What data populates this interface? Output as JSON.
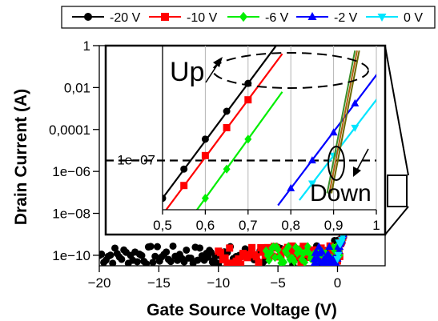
{
  "chart_data": [
    {
      "type": "scatter",
      "xlabel": "Gate Source Voltage (V)",
      "ylabel": "Drain Current (A)",
      "xlim": [
        -20,
        4
      ],
      "ylim_log10": [
        -10.5,
        0
      ],
      "x_scale": "linear",
      "y_scale": "log",
      "x_ticks": [
        -20,
        -15,
        -10,
        -5,
        0
      ],
      "x_tick_labels": [
        "−20",
        "−15",
        "−10",
        "−5",
        "0"
      ],
      "y_ticks": [
        1,
        0.01,
        0.0001,
        1e-06,
        1e-08,
        1e-10
      ],
      "y_tick_labels": [
        "1",
        "0,01",
        "0,0001",
        "1e−06",
        "1e−08",
        "1e−10"
      ],
      "legend_position": "top",
      "grid": false,
      "series": [
        {
          "name": "-20 V",
          "color": "#000000",
          "marker": "circle",
          "x": [
            -20,
            -18.5,
            -17,
            -15.5,
            -14,
            -12.5,
            -11,
            -10,
            -8,
            -6,
            -4,
            -2,
            0,
            0.5,
            1,
            1.5,
            2,
            2.5,
            3
          ],
          "y": [
            1e-10,
            1e-10,
            1e-10,
            1e-10,
            1e-10,
            1e-10,
            1e-10,
            1e-10,
            1e-10,
            1e-10,
            1e-10,
            1e-10,
            2e-10,
            1e-09,
            1e-07,
            1e-05,
            0.001,
            0.1,
            1
          ]
        },
        {
          "name": "-10 V",
          "color": "#ff0000",
          "marker": "square",
          "x": [
            -10,
            -8.5,
            -7,
            -5.5,
            -4,
            -2.5,
            -1,
            0,
            0.5,
            1,
            1.5,
            2,
            2.5,
            3
          ],
          "y": [
            1e-10,
            1e-10,
            1e-10,
            1e-10,
            1e-10,
            1e-10,
            1e-10,
            1e-10,
            1e-09,
            1e-07,
            1e-05,
            0.001,
            0.1,
            1
          ]
        },
        {
          "name": "-6 V",
          "color": "#00ee00",
          "marker": "diamond",
          "x": [
            -6,
            -5,
            -4,
            -3,
            -2,
            -1,
            0,
            0.5,
            1,
            1.5,
            2,
            2.5,
            3
          ],
          "y": [
            1e-10,
            1e-10,
            1e-10,
            1e-10,
            1e-10,
            1e-10,
            1e-10,
            1e-09,
            1e-07,
            1e-05,
            0.001,
            0.1,
            1
          ]
        },
        {
          "name": "-2 V",
          "color": "#0000ff",
          "marker": "triangle-up",
          "x": [
            -2,
            -1.5,
            -1,
            -0.5,
            0,
            0.5,
            1,
            1.5,
            2,
            2.5,
            3
          ],
          "y": [
            1e-10,
            1e-10,
            1e-10,
            1e-10,
            1e-10,
            1e-09,
            1e-07,
            1e-05,
            0.001,
            0.1,
            1
          ]
        },
        {
          "name": "0 V",
          "color": "#00e5ff",
          "marker": "triangle-down",
          "x": [
            0,
            0.5,
            1,
            1.5,
            2,
            2.5,
            3
          ],
          "y": [
            1e-10,
            1e-09,
            1e-07,
            1e-05,
            0.001,
            0.1,
            1
          ]
        }
      ]
    },
    {
      "type": "line",
      "role": "inset",
      "xlim": [
        0.5,
        1
      ],
      "ylim_log10": [
        -10,
        0
      ],
      "x_ticks": [
        0.5,
        0.6,
        0.7,
        0.8,
        0.9,
        1
      ],
      "x_tick_labels": [
        "0,5",
        "0,6",
        "0,7",
        "0,8",
        "0,9",
        "1"
      ],
      "y_ticks": [
        1e-07
      ],
      "y_tick_labels": [
        "1e−07"
      ],
      "grid": true,
      "reference_line": {
        "y": 1e-07,
        "style": "dashed"
      },
      "annotations": [
        {
          "text": "Up",
          "x": 0.52,
          "y": 0.01
        },
        {
          "text": "Down",
          "x": 0.865,
          "y": 6e-10
        }
      ],
      "series": [
        {
          "name": "-20 V",
          "color": "#000000",
          "marker": "circle",
          "x": [
            0.5,
            0.55,
            0.6,
            0.65,
            0.7
          ],
          "y": [
            5e-10,
            3e-08,
            2e-06,
            0.0001,
            0.005
          ]
        },
        {
          "name": "-10 V",
          "color": "#ff0000",
          "marker": "square",
          "x": [
            0.5,
            0.55,
            0.6,
            0.65,
            0.7
          ],
          "y": [
            5e-11,
            3e-09,
            2e-07,
            1e-05,
            0.0005
          ]
        },
        {
          "name": "-6 V",
          "color": "#00ee00",
          "marker": "diamond",
          "x": [
            0.6,
            0.65,
            0.7
          ],
          "y": [
            5e-10,
            3e-08,
            2e-06
          ]
        },
        {
          "name": "-2 V",
          "color": "#0000ff",
          "marker": "triangle-up",
          "x": [
            0.8,
            0.85,
            0.9,
            0.95
          ],
          "y": [
            2e-09,
            1e-07,
            5e-06,
            0.0003
          ]
        },
        {
          "name": "0 V",
          "color": "#00e5ff",
          "marker": "triangle-down",
          "x": [
            0.85,
            0.9,
            0.95
          ],
          "y": [
            4e-09,
            2e-07,
            1e-05
          ]
        }
      ]
    }
  ]
}
